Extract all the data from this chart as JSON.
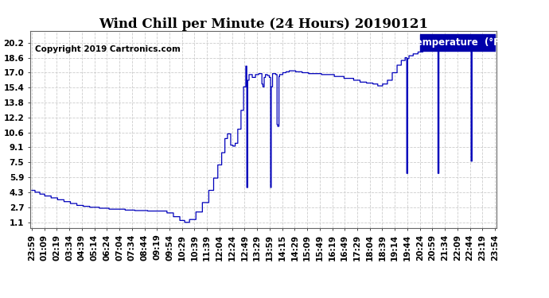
{
  "title": "Wind Chill per Minute (24 Hours) 20190121",
  "copyright": "Copyright 2019 Cartronics.com",
  "legend_label": "Temperature  (°F)",
  "line_color": "#0000bb",
  "bg_color": "#ffffff",
  "grid_color": "#cccccc",
  "plot_bg": "#ffffff",
  "ylim": [
    0.5,
    21.4
  ],
  "yticks": [
    1.1,
    2.7,
    4.3,
    5.9,
    7.5,
    9.1,
    10.6,
    12.2,
    13.8,
    15.4,
    17.0,
    18.6,
    20.2
  ],
  "x_labels": [
    "23:59",
    "01:09",
    "02:19",
    "03:34",
    "04:39",
    "05:14",
    "06:24",
    "07:04",
    "07:34",
    "08:44",
    "09:19",
    "09:54",
    "10:29",
    "10:39",
    "11:39",
    "12:04",
    "12:24",
    "12:49",
    "13:29",
    "13:59",
    "14:15",
    "14:29",
    "15:09",
    "15:49",
    "16:19",
    "16:49",
    "17:29",
    "18:04",
    "18:39",
    "19:14",
    "19:44",
    "20:24",
    "20:59",
    "21:34",
    "22:09",
    "22:44",
    "23:19",
    "23:54"
  ],
  "title_fontsize": 12,
  "copyright_fontsize": 7.5,
  "legend_fontsize": 8.5,
  "axis_fontsize": 7.5
}
